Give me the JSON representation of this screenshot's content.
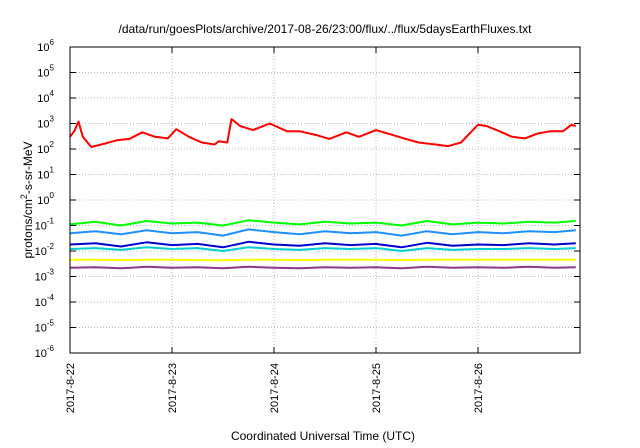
{
  "chart_data": {
    "type": "line",
    "title": "/data/run/goesPlots/archive/2017-08-26/23:00/flux/../flux/5daysEarthFluxes.txt",
    "xlabel": "Coordinated Universal Time (UTC)",
    "ylabel": "protons/cm2-s-sr-MeV",
    "y_scale": "log",
    "ylim": [
      1e-06,
      1000000.0
    ],
    "xlim": [
      "2017-08-22T00:00",
      "2017-08-27T00:00"
    ],
    "grid": true,
    "legend": "none",
    "x_tick_labels": [
      "2017-8-22",
      "2017-8-23",
      "2017-8-24",
      "2017-8-25",
      "2017-8-26"
    ],
    "x_ticks": [
      "2017-08-22",
      "2017-08-23",
      "2017-08-24",
      "2017-08-25",
      "2017-08-26"
    ],
    "y_ticks": [
      {
        "base": "10",
        "exp": "-6",
        "value": 1e-06
      },
      {
        "base": "10",
        "exp": "-5",
        "value": 1e-05
      },
      {
        "base": "10",
        "exp": "-4",
        "value": 0.0001
      },
      {
        "base": "10",
        "exp": "-3",
        "value": 0.001
      },
      {
        "base": "10",
        "exp": "-2",
        "value": 0.01
      },
      {
        "base": "10",
        "exp": "-1",
        "value": 0.1
      },
      {
        "base": "10",
        "exp": "0",
        "value": 1
      },
      {
        "base": "10",
        "exp": "1",
        "value": 10
      },
      {
        "base": "10",
        "exp": "2",
        "value": 100
      },
      {
        "base": "10",
        "exp": "3",
        "value": 1000
      },
      {
        "base": "10",
        "exp": "4",
        "value": 10000
      },
      {
        "base": "10",
        "exp": "5",
        "value": 100000
      },
      {
        "base": "10",
        "exp": "6",
        "value": 1000000
      }
    ],
    "series": [
      {
        "color": "#ff0000",
        "x": [
          "2017-08-22T00:00",
          "2017-08-22T01:00",
          "2017-08-22T02:00",
          "2017-08-22T03:00",
          "2017-08-22T05:00",
          "2017-08-22T08:00",
          "2017-08-22T11:00",
          "2017-08-22T14:00",
          "2017-08-22T17:00",
          "2017-08-22T20:00",
          "2017-08-22T23:00",
          "2017-08-23T01:00",
          "2017-08-23T04:00",
          "2017-08-23T07:00",
          "2017-08-23T10:00",
          "2017-08-23T11:00",
          "2017-08-23T13:00",
          "2017-08-23T14:00",
          "2017-08-23T16:00",
          "2017-08-23T19:00",
          "2017-08-23T23:00",
          "2017-08-24T03:00",
          "2017-08-24T06:00",
          "2017-08-24T10:00",
          "2017-08-24T13:00",
          "2017-08-24T17:00",
          "2017-08-24T20:00",
          "2017-08-25T00:00",
          "2017-08-25T04:00",
          "2017-08-25T07:00",
          "2017-08-25T10:00",
          "2017-08-25T14:00",
          "2017-08-25T17:00",
          "2017-08-25T20:00",
          "2017-08-26T00:00",
          "2017-08-26T02:00",
          "2017-08-26T05:00",
          "2017-08-26T08:00",
          "2017-08-26T11:00",
          "2017-08-26T14:00",
          "2017-08-26T17:00",
          "2017-08-26T20:00",
          "2017-08-26T22:00",
          "2017-08-26T23:00"
        ],
        "values": [
          300,
          500,
          1200,
          300,
          120,
          160,
          220,
          250,
          450,
          300,
          260,
          600,
          300,
          180,
          150,
          200,
          180,
          1500,
          800,
          550,
          1000,
          500,
          500,
          350,
          250,
          450,
          300,
          550,
          350,
          250,
          180,
          150,
          130,
          180,
          900,
          800,
          500,
          300,
          260,
          400,
          500,
          500,
          900,
          800
        ]
      },
      {
        "color": "#00ff00",
        "x": [
          "2017-08-22T00:00",
          "2017-08-22T06:00",
          "2017-08-22T12:00",
          "2017-08-22T18:00",
          "2017-08-23T00:00",
          "2017-08-23T06:00",
          "2017-08-23T12:00",
          "2017-08-23T18:00",
          "2017-08-24T00:00",
          "2017-08-24T06:00",
          "2017-08-24T12:00",
          "2017-08-24T18:00",
          "2017-08-25T00:00",
          "2017-08-25T06:00",
          "2017-08-25T12:00",
          "2017-08-25T18:00",
          "2017-08-26T00:00",
          "2017-08-26T06:00",
          "2017-08-26T12:00",
          "2017-08-26T18:00",
          "2017-08-26T23:00"
        ],
        "values": [
          0.11,
          0.14,
          0.1,
          0.15,
          0.12,
          0.13,
          0.1,
          0.16,
          0.13,
          0.11,
          0.14,
          0.12,
          0.13,
          0.1,
          0.15,
          0.11,
          0.13,
          0.12,
          0.14,
          0.13,
          0.15
        ]
      },
      {
        "color": "#1e90ff",
        "x": [
          "2017-08-22T00:00",
          "2017-08-22T06:00",
          "2017-08-22T12:00",
          "2017-08-22T18:00",
          "2017-08-23T00:00",
          "2017-08-23T06:00",
          "2017-08-23T12:00",
          "2017-08-23T18:00",
          "2017-08-24T00:00",
          "2017-08-24T06:00",
          "2017-08-24T12:00",
          "2017-08-24T18:00",
          "2017-08-25T00:00",
          "2017-08-25T06:00",
          "2017-08-25T12:00",
          "2017-08-25T18:00",
          "2017-08-26T00:00",
          "2017-08-26T06:00",
          "2017-08-26T12:00",
          "2017-08-26T18:00",
          "2017-08-26T23:00"
        ],
        "values": [
          0.05,
          0.06,
          0.045,
          0.065,
          0.05,
          0.055,
          0.04,
          0.07,
          0.055,
          0.045,
          0.06,
          0.05,
          0.055,
          0.04,
          0.06,
          0.045,
          0.055,
          0.05,
          0.06,
          0.055,
          0.065
        ]
      },
      {
        "color": "#00ced1",
        "x": [
          "2017-08-22T00:00",
          "2017-08-22T06:00",
          "2017-08-22T12:00",
          "2017-08-22T18:00",
          "2017-08-23T00:00",
          "2017-08-23T06:00",
          "2017-08-23T12:00",
          "2017-08-23T18:00",
          "2017-08-24T00:00",
          "2017-08-24T06:00",
          "2017-08-24T12:00",
          "2017-08-24T18:00",
          "2017-08-25T00:00",
          "2017-08-25T06:00",
          "2017-08-25T12:00",
          "2017-08-25T18:00",
          "2017-08-26T00:00",
          "2017-08-26T06:00",
          "2017-08-26T12:00",
          "2017-08-26T18:00",
          "2017-08-26T23:00"
        ],
        "values": [
          0.012,
          0.013,
          0.011,
          0.014,
          0.012,
          0.013,
          0.01,
          0.014,
          0.012,
          0.011,
          0.013,
          0.012,
          0.013,
          0.01,
          0.013,
          0.011,
          0.012,
          0.012,
          0.013,
          0.012,
          0.013
        ]
      },
      {
        "color": "#0000cd",
        "x": [
          "2017-08-22T00:00",
          "2017-08-22T06:00",
          "2017-08-22T12:00",
          "2017-08-22T18:00",
          "2017-08-23T00:00",
          "2017-08-23T06:00",
          "2017-08-23T12:00",
          "2017-08-23T18:00",
          "2017-08-24T00:00",
          "2017-08-24T06:00",
          "2017-08-24T12:00",
          "2017-08-24T18:00",
          "2017-08-25T00:00",
          "2017-08-25T06:00",
          "2017-08-25T12:00",
          "2017-08-25T18:00",
          "2017-08-26T00:00",
          "2017-08-26T06:00",
          "2017-08-26T12:00",
          "2017-08-26T18:00",
          "2017-08-26T23:00"
        ],
        "values": [
          0.018,
          0.02,
          0.015,
          0.022,
          0.017,
          0.019,
          0.014,
          0.023,
          0.018,
          0.016,
          0.02,
          0.017,
          0.019,
          0.014,
          0.021,
          0.016,
          0.018,
          0.017,
          0.02,
          0.018,
          0.02
        ]
      },
      {
        "color": "#ffff00",
        "x": [
          "2017-08-22T00:00",
          "2017-08-22T06:00",
          "2017-08-22T12:00",
          "2017-08-22T18:00",
          "2017-08-23T00:00",
          "2017-08-23T06:00",
          "2017-08-23T12:00",
          "2017-08-23T18:00",
          "2017-08-24T00:00",
          "2017-08-24T06:00",
          "2017-08-24T12:00",
          "2017-08-24T18:00",
          "2017-08-25T00:00",
          "2017-08-25T06:00",
          "2017-08-25T12:00",
          "2017-08-25T18:00",
          "2017-08-26T00:00",
          "2017-08-26T06:00",
          "2017-08-26T12:00",
          "2017-08-26T18:00",
          "2017-08-26T23:00"
        ],
        "values": [
          0.0045,
          0.0045,
          0.0044,
          0.0045,
          0.0045,
          0.0044,
          0.0043,
          0.0045,
          0.0045,
          0.0044,
          0.0045,
          0.0045,
          0.0045,
          0.0044,
          0.0045,
          0.0045,
          0.0045,
          0.0045,
          0.0045,
          0.0045,
          0.0045
        ]
      },
      {
        "color": "#8b3a8b",
        "x": [
          "2017-08-22T00:00",
          "2017-08-22T06:00",
          "2017-08-22T12:00",
          "2017-08-22T18:00",
          "2017-08-23T00:00",
          "2017-08-23T06:00",
          "2017-08-23T12:00",
          "2017-08-23T18:00",
          "2017-08-24T00:00",
          "2017-08-24T06:00",
          "2017-08-24T12:00",
          "2017-08-24T18:00",
          "2017-08-25T00:00",
          "2017-08-25T06:00",
          "2017-08-25T12:00",
          "2017-08-25T18:00",
          "2017-08-26T00:00",
          "2017-08-26T06:00",
          "2017-08-26T12:00",
          "2017-08-26T18:00",
          "2017-08-26T23:00"
        ],
        "values": [
          0.0022,
          0.0023,
          0.0021,
          0.0024,
          0.0022,
          0.0023,
          0.0021,
          0.0024,
          0.0022,
          0.0021,
          0.0023,
          0.0022,
          0.0023,
          0.0021,
          0.0024,
          0.0022,
          0.0023,
          0.0022,
          0.0024,
          0.0022,
          0.0023
        ]
      }
    ]
  }
}
